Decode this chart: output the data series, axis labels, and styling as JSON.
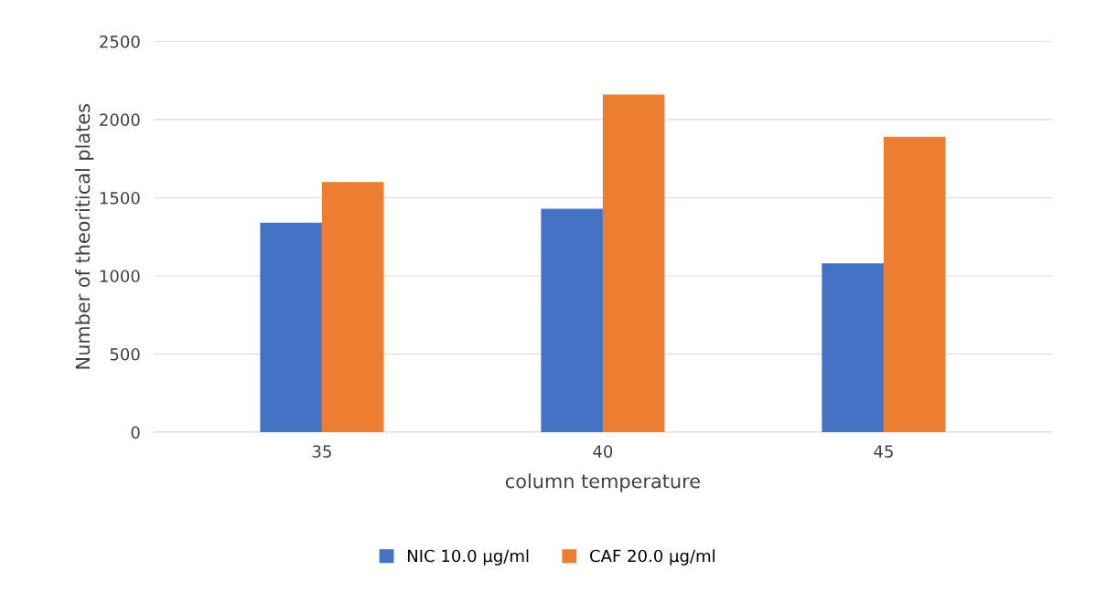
{
  "chart_data": {
    "type": "bar",
    "xlabel": "column temperature",
    "ylabel": "Number of theoritical plates",
    "categories": [
      "35",
      "40",
      "45"
    ],
    "series": [
      {
        "name": "NIC 10.0 µg/ml",
        "color": "#4472c4",
        "values": [
          1340,
          1430,
          1080
        ]
      },
      {
        "name": "CAF 20.0 µg/ml",
        "color": "#ed7d31",
        "values": [
          1600,
          2160,
          1890
        ]
      }
    ],
    "ylim": [
      0,
      2500
    ],
    "yticks": [
      0,
      500,
      1000,
      1500,
      2000,
      2500
    ],
    "grid": "y",
    "legend": "bottom"
  }
}
